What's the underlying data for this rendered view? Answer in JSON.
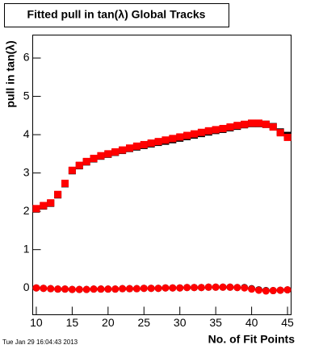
{
  "chart_data": {
    "type": "scatter",
    "title": "Fitted pull in tan(λ)  Global Tracks",
    "xlabel": "No. of Fit Points",
    "ylabel": "pull in tan(λ)",
    "footer": "Tue Jan 29 16:04:43 2013",
    "x": [
      10,
      11,
      12,
      13,
      14,
      15,
      16,
      17,
      18,
      19,
      20,
      21,
      22,
      23,
      24,
      25,
      26,
      27,
      28,
      29,
      30,
      31,
      32,
      33,
      34,
      35,
      36,
      37,
      38,
      39,
      40,
      41,
      42,
      43,
      44,
      45
    ],
    "series": [
      {
        "color": "#000000",
        "marker": "square",
        "values": [
          2.06,
          2.14,
          2.21,
          2.43,
          2.72,
          3.06,
          3.19,
          3.29,
          3.37,
          3.44,
          3.49,
          3.54,
          3.59,
          3.64,
          3.68,
          3.72,
          3.76,
          3.8,
          3.83,
          3.87,
          3.91,
          3.95,
          3.99,
          4.03,
          4.07,
          4.11,
          4.14,
          4.18,
          4.22,
          4.26,
          4.29,
          4.29,
          4.27,
          4.21,
          4.07,
          3.98
        ]
      },
      {
        "color": "#ff0000",
        "marker": "square",
        "values": [
          2.07,
          2.15,
          2.22,
          2.44,
          2.73,
          3.07,
          3.2,
          3.3,
          3.38,
          3.45,
          3.5,
          3.55,
          3.6,
          3.65,
          3.7,
          3.74,
          3.78,
          3.82,
          3.86,
          3.9,
          3.94,
          3.98,
          4.02,
          4.06,
          4.1,
          4.13,
          4.16,
          4.2,
          4.24,
          4.27,
          4.3,
          4.3,
          4.27,
          4.2,
          4.05,
          3.93
        ]
      },
      {
        "color": "#000000",
        "marker": "circle",
        "values": [
          0.0,
          -0.01,
          -0.02,
          -0.03,
          -0.03,
          -0.04,
          -0.04,
          -0.04,
          -0.03,
          -0.03,
          -0.03,
          -0.03,
          -0.02,
          -0.02,
          -0.02,
          -0.01,
          -0.01,
          -0.01,
          0.0,
          0.0,
          0.0,
          0.01,
          0.01,
          0.01,
          0.02,
          0.02,
          0.02,
          0.02,
          0.01,
          0.01,
          -0.02,
          -0.05,
          -0.07,
          -0.07,
          -0.06,
          -0.05
        ]
      },
      {
        "color": "#ff0000",
        "marker": "circle",
        "values": [
          0.0,
          -0.01,
          -0.02,
          -0.03,
          -0.03,
          -0.04,
          -0.04,
          -0.04,
          -0.03,
          -0.03,
          -0.03,
          -0.03,
          -0.02,
          -0.02,
          -0.02,
          -0.01,
          -0.01,
          -0.01,
          0.0,
          0.0,
          0.0,
          0.01,
          0.01,
          0.01,
          0.02,
          0.02,
          0.02,
          0.02,
          0.01,
          0.0,
          -0.03,
          -0.06,
          -0.08,
          -0.07,
          -0.06,
          -0.05
        ]
      }
    ],
    "xlim": [
      9.5,
      45.5
    ],
    "ylim": [
      -0.7,
      6.6
    ],
    "xticks": [
      10,
      15,
      20,
      25,
      30,
      35,
      40,
      45
    ],
    "yticks": [
      0,
      1,
      2,
      3,
      4,
      5,
      6
    ]
  }
}
